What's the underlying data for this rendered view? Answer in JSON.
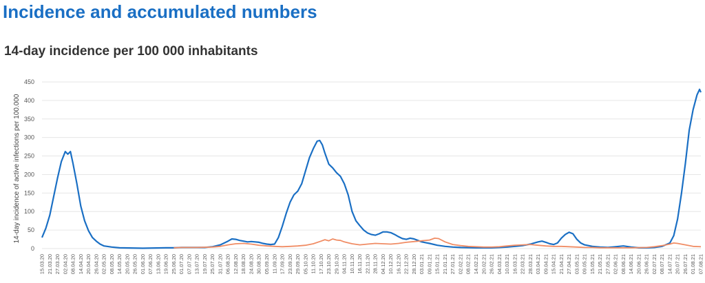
{
  "page": {
    "title": "Incidence and accumulated numbers",
    "subtitle": "14-day incidence per 100 000 inhabitants"
  },
  "chart_data": {
    "type": "line",
    "title": "14-day incidence per 100 000 inhabitants",
    "xlabel": "",
    "ylabel": "14-day incidence of active infections per 100.000",
    "ylim": [
      0,
      450
    ],
    "yticks": [
      0,
      50,
      100,
      150,
      200,
      250,
      300,
      350,
      400,
      450
    ],
    "grid": true,
    "legend": "none",
    "x_tick_labels": [
      "15.03.20",
      "21.03.20",
      "27.03.20",
      "02.04.20",
      "08.04.20",
      "14.04.20",
      "20.04.20",
      "26.04.20",
      "02.05.20",
      "08.05.20",
      "14.05.20",
      "20.05.20",
      "26.05.20",
      "01.06.20",
      "07.06.20",
      "13.06.20",
      "19.06.20",
      "25.06.20",
      "01.07.20",
      "07.07.20",
      "13.07.20",
      "19.07.20",
      "25.07.20",
      "31.07.20",
      "06.08.20",
      "12.08.20",
      "18.08.20",
      "24.08.20",
      "30.08.20",
      "05.09.20",
      "11.09.20",
      "17.09.20",
      "23.09.20",
      "29.09.20",
      "05.10.20",
      "11.10.20",
      "17.10.20",
      "23.10.20",
      "29.10.20",
      "04.11.20",
      "10.11.20",
      "16.11.20",
      "22.11.20",
      "28.11.20",
      "04.12.20",
      "10.12.20",
      "16.12.20",
      "22.12.20",
      "28.12.20",
      "03.01.21",
      "09.01.21",
      "15.01.21",
      "21.01.21",
      "27.01.21",
      "02.02.21",
      "08.02.21",
      "14.02.21",
      "20.02.21",
      "26.02.21",
      "04.03.21",
      "10.03.21",
      "16.03.21",
      "22.03.21",
      "28.03.21",
      "03.04.21",
      "09.04.21",
      "15.04.21",
      "21.04.21",
      "27.04.21",
      "03.05.21",
      "09.05.21",
      "15.05.21",
      "21.05.21",
      "27.05.21",
      "02.06.21",
      "08.06.21",
      "14.06.21",
      "20.06.21",
      "26.06.21",
      "02.07.21",
      "08.07.21",
      "14.07.21",
      "20.07.21",
      "26.07.21",
      "01.08.21",
      "07.08.21"
    ],
    "series": [
      {
        "color": "#1a6fc4",
        "points": [
          [
            "15.03.20",
            30
          ],
          [
            "18.03.20",
            55
          ],
          [
            "21.03.20",
            90
          ],
          [
            "24.03.20",
            140
          ],
          [
            "27.03.20",
            190
          ],
          [
            "30.03.20",
            235
          ],
          [
            "02.04.20",
            262
          ],
          [
            "04.04.20",
            255
          ],
          [
            "06.04.20",
            262
          ],
          [
            "08.04.20",
            230
          ],
          [
            "11.04.20",
            175
          ],
          [
            "14.04.20",
            115
          ],
          [
            "17.04.20",
            75
          ],
          [
            "20.04.20",
            48
          ],
          [
            "23.04.20",
            30
          ],
          [
            "26.04.20",
            20
          ],
          [
            "29.04.20",
            12
          ],
          [
            "02.05.20",
            7
          ],
          [
            "08.05.20",
            4
          ],
          [
            "14.05.20",
            2
          ],
          [
            "01.06.20",
            1
          ],
          [
            "19.06.20",
            2
          ],
          [
            "25.06.20",
            2
          ],
          [
            "01.07.20",
            3
          ],
          [
            "19.07.20",
            3
          ],
          [
            "25.07.20",
            5
          ],
          [
            "31.07.20",
            10
          ],
          [
            "06.08.20",
            20
          ],
          [
            "09.08.20",
            26
          ],
          [
            "12.08.20",
            25
          ],
          [
            "15.08.20",
            22
          ],
          [
            "18.08.20",
            20
          ],
          [
            "21.08.20",
            18
          ],
          [
            "24.08.20",
            19
          ],
          [
            "27.08.20",
            18
          ],
          [
            "30.08.20",
            17
          ],
          [
            "02.09.20",
            14
          ],
          [
            "05.09.20",
            12
          ],
          [
            "08.09.20",
            11
          ],
          [
            "11.09.20",
            12
          ],
          [
            "14.09.20",
            30
          ],
          [
            "17.09.20",
            60
          ],
          [
            "20.09.20",
            95
          ],
          [
            "23.09.20",
            125
          ],
          [
            "26.09.20",
            145
          ],
          [
            "29.09.20",
            155
          ],
          [
            "02.10.20",
            175
          ],
          [
            "05.10.20",
            210
          ],
          [
            "08.10.20",
            245
          ],
          [
            "11.10.20",
            270
          ],
          [
            "14.10.20",
            290
          ],
          [
            "16.10.20",
            292
          ],
          [
            "18.10.20",
            280
          ],
          [
            "20.10.20",
            258
          ],
          [
            "23.10.20",
            228
          ],
          [
            "26.10.20",
            218
          ],
          [
            "29.10.20",
            205
          ],
          [
            "01.11.20",
            195
          ],
          [
            "04.11.20",
            175
          ],
          [
            "07.11.20",
            145
          ],
          [
            "10.11.20",
            100
          ],
          [
            "13.11.20",
            75
          ],
          [
            "16.11.20",
            62
          ],
          [
            "19.11.20",
            50
          ],
          [
            "22.11.20",
            42
          ],
          [
            "25.11.20",
            38
          ],
          [
            "28.11.20",
            36
          ],
          [
            "01.12.20",
            40
          ],
          [
            "04.12.20",
            45
          ],
          [
            "07.12.20",
            45
          ],
          [
            "10.12.20",
            43
          ],
          [
            "13.12.20",
            38
          ],
          [
            "16.12.20",
            32
          ],
          [
            "19.12.20",
            27
          ],
          [
            "22.12.20",
            25
          ],
          [
            "25.12.20",
            28
          ],
          [
            "28.12.20",
            26
          ],
          [
            "31.12.20",
            22
          ],
          [
            "03.01.21",
            18
          ],
          [
            "06.01.21",
            16
          ],
          [
            "09.01.21",
            14
          ],
          [
            "15.01.21",
            9
          ],
          [
            "21.01.21",
            6
          ],
          [
            "27.01.21",
            4
          ],
          [
            "02.02.21",
            3
          ],
          [
            "14.02.21",
            2
          ],
          [
            "26.02.21",
            2
          ],
          [
            "04.03.21",
            3
          ],
          [
            "10.03.21",
            4
          ],
          [
            "16.03.21",
            6
          ],
          [
            "22.03.21",
            8
          ],
          [
            "28.03.21",
            12
          ],
          [
            "03.04.21",
            18
          ],
          [
            "06.04.21",
            20
          ],
          [
            "09.04.21",
            17
          ],
          [
            "12.04.21",
            13
          ],
          [
            "15.04.21",
            11
          ],
          [
            "18.04.21",
            15
          ],
          [
            "21.04.21",
            28
          ],
          [
            "24.04.21",
            38
          ],
          [
            "27.04.21",
            44
          ],
          [
            "30.04.21",
            40
          ],
          [
            "03.05.21",
            25
          ],
          [
            "06.05.21",
            15
          ],
          [
            "09.05.21",
            10
          ],
          [
            "15.05.21",
            6
          ],
          [
            "21.05.21",
            4
          ],
          [
            "27.05.21",
            3
          ],
          [
            "02.06.21",
            5
          ],
          [
            "08.06.21",
            7
          ],
          [
            "14.06.21",
            4
          ],
          [
            "20.06.21",
            2
          ],
          [
            "26.06.21",
            2
          ],
          [
            "02.07.21",
            3
          ],
          [
            "08.07.21",
            6
          ],
          [
            "14.07.21",
            15
          ],
          [
            "17.07.21",
            35
          ],
          [
            "20.07.21",
            80
          ],
          [
            "23.07.21",
            150
          ],
          [
            "26.07.21",
            230
          ],
          [
            "29.07.21",
            320
          ],
          [
            "01.08.21",
            375
          ],
          [
            "04.08.21",
            415
          ],
          [
            "06.08.21",
            430
          ],
          [
            "07.08.21",
            422
          ]
        ]
      },
      {
        "color": "#f08c64",
        "points": [
          [
            "25.06.20",
            2
          ],
          [
            "01.07.20",
            3
          ],
          [
            "13.07.20",
            3
          ],
          [
            "25.07.20",
            4
          ],
          [
            "31.07.20",
            6
          ],
          [
            "06.08.20",
            10
          ],
          [
            "12.08.20",
            13
          ],
          [
            "18.08.20",
            14
          ],
          [
            "24.08.20",
            12
          ],
          [
            "30.08.20",
            9
          ],
          [
            "05.09.20",
            7
          ],
          [
            "11.09.20",
            6
          ],
          [
            "17.09.20",
            5
          ],
          [
            "23.09.20",
            6
          ],
          [
            "29.09.20",
            7
          ],
          [
            "05.10.20",
            9
          ],
          [
            "11.10.20",
            13
          ],
          [
            "17.10.20",
            20
          ],
          [
            "20.10.20",
            24
          ],
          [
            "23.10.20",
            21
          ],
          [
            "26.10.20",
            26
          ],
          [
            "29.10.20",
            23
          ],
          [
            "01.11.20",
            22
          ],
          [
            "04.11.20",
            18
          ],
          [
            "10.11.20",
            13
          ],
          [
            "16.11.20",
            10
          ],
          [
            "22.11.20",
            12
          ],
          [
            "28.11.20",
            14
          ],
          [
            "04.12.20",
            13
          ],
          [
            "10.12.20",
            12
          ],
          [
            "16.12.20",
            14
          ],
          [
            "22.12.20",
            17
          ],
          [
            "28.12.20",
            19
          ],
          [
            "03.01.21",
            21
          ],
          [
            "09.01.21",
            23
          ],
          [
            "13.01.21",
            28
          ],
          [
            "16.01.21",
            27
          ],
          [
            "21.01.21",
            18
          ],
          [
            "27.01.21",
            11
          ],
          [
            "02.02.21",
            8
          ],
          [
            "08.02.21",
            6
          ],
          [
            "14.02.21",
            5
          ],
          [
            "20.02.21",
            4
          ],
          [
            "26.02.21",
            4
          ],
          [
            "04.03.21",
            5
          ],
          [
            "10.03.21",
            7
          ],
          [
            "16.03.21",
            9
          ],
          [
            "22.03.21",
            10
          ],
          [
            "28.03.21",
            11
          ],
          [
            "03.04.21",
            9
          ],
          [
            "09.04.21",
            7
          ],
          [
            "15.04.21",
            6
          ],
          [
            "21.04.21",
            6
          ],
          [
            "27.04.21",
            5
          ],
          [
            "03.05.21",
            4
          ],
          [
            "09.05.21",
            3
          ],
          [
            "15.05.21",
            3
          ],
          [
            "21.05.21",
            2
          ],
          [
            "27.05.21",
            2
          ],
          [
            "02.06.21",
            2
          ],
          [
            "14.06.21",
            2
          ],
          [
            "26.06.21",
            3
          ],
          [
            "02.07.21",
            5
          ],
          [
            "08.07.21",
            8
          ],
          [
            "14.07.21",
            12
          ],
          [
            "17.07.21",
            15
          ],
          [
            "20.07.21",
            14
          ],
          [
            "26.07.21",
            10
          ],
          [
            "01.08.21",
            6
          ],
          [
            "07.08.21",
            5
          ]
        ]
      }
    ]
  }
}
